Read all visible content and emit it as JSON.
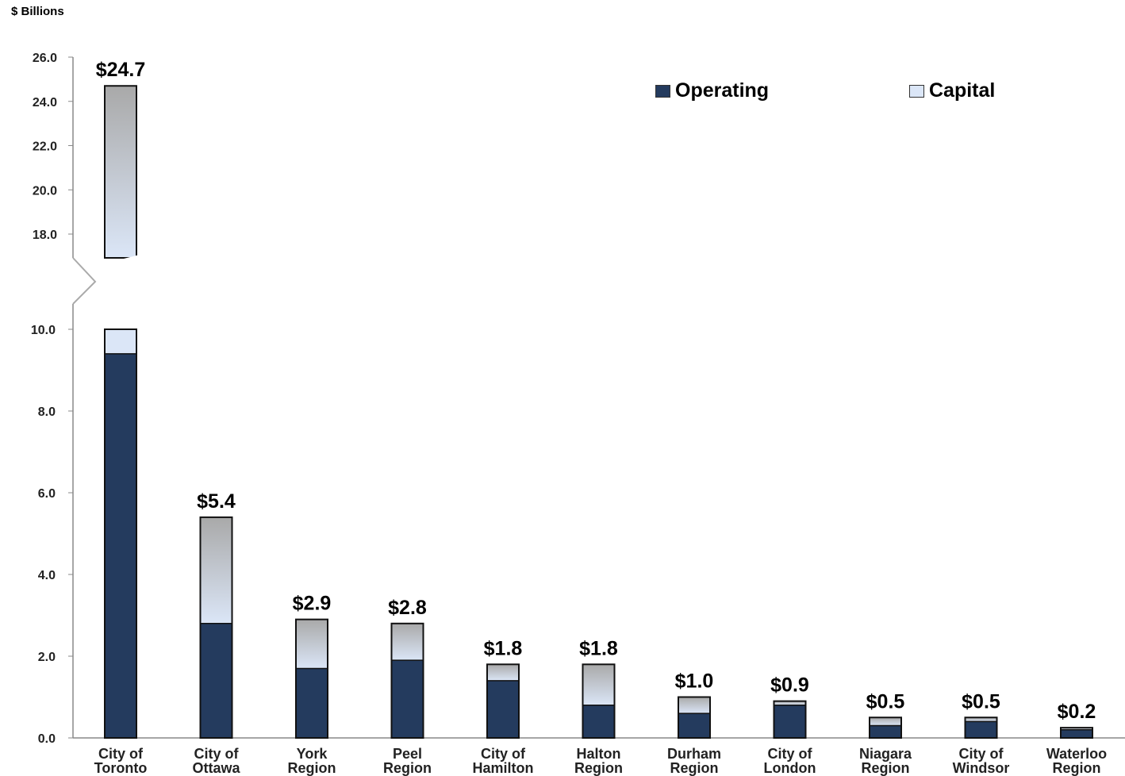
{
  "unit_label": "$ Billions",
  "legend": {
    "operating": "Operating",
    "capital": "Capital"
  },
  "colors": {
    "operating": "#243b5e",
    "capital_top": "#a9a9a9",
    "capital_bottom": "#dbe6f7",
    "axis": "#888888"
  },
  "chart_data": {
    "type": "bar",
    "stacked": true,
    "axis_break": {
      "from": 10.0,
      "to": 17.0
    },
    "y_ticks_lower": [
      "0.0",
      "2.0",
      "4.0",
      "6.0",
      "8.0",
      "10.0"
    ],
    "y_ticks_upper": [
      "18.0",
      "20.0",
      "22.0",
      "24.0",
      "26.0"
    ],
    "ylim": [
      0,
      26
    ],
    "categories": [
      [
        "City of",
        "Toronto"
      ],
      [
        "City of",
        "Ottawa"
      ],
      [
        "York",
        "Region"
      ],
      [
        "Peel",
        "Region"
      ],
      [
        "City of",
        "Hamilton"
      ],
      [
        "Halton",
        "Region"
      ],
      [
        "Durham",
        "Region"
      ],
      [
        "City of",
        "London"
      ],
      [
        "Niagara",
        "Region"
      ],
      [
        "City of",
        "Windsor"
      ],
      [
        "Waterloo",
        "Region"
      ]
    ],
    "series": [
      {
        "name": "Operating",
        "values": [
          9.4,
          2.8,
          1.7,
          1.9,
          1.4,
          0.8,
          0.6,
          0.8,
          0.3,
          0.4,
          0.2
        ]
      },
      {
        "name": "Capital",
        "values": [
          15.3,
          2.6,
          1.2,
          0.9,
          0.4,
          1.0,
          0.4,
          0.1,
          0.2,
          0.1,
          0.05
        ]
      }
    ],
    "data_labels": [
      "$24.7",
      "$5.4",
      "$2.9",
      "$2.8",
      "$1.8",
      "$1.8",
      "$1.0",
      "$0.9",
      "$0.5",
      "$0.5",
      "$0.2"
    ],
    "legend_position": "top-right"
  }
}
